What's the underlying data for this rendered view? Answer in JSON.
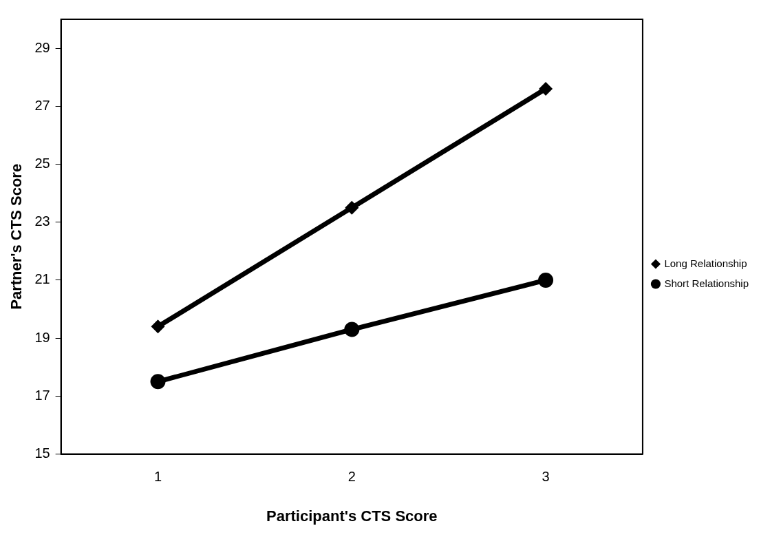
{
  "chart_data": {
    "type": "line",
    "xlabel": "Participant's CTS Score",
    "ylabel": "Partner's CTS Score",
    "categories": [
      "1",
      "2",
      "3"
    ],
    "series": [
      {
        "name": "Long Relationship",
        "color": "#000000",
        "marker": "diamond",
        "values": [
          19.4,
          23.5,
          27.6
        ]
      },
      {
        "name": "Short Relationship",
        "color": "#000000",
        "marker": "circle",
        "values": [
          17.5,
          19.3,
          21.0
        ]
      }
    ],
    "ylim": [
      15,
      30
    ],
    "yticks": [
      15,
      17,
      19,
      21,
      23,
      25,
      27,
      29
    ],
    "grid": false,
    "legend": "right",
    "line_style": "solid"
  }
}
